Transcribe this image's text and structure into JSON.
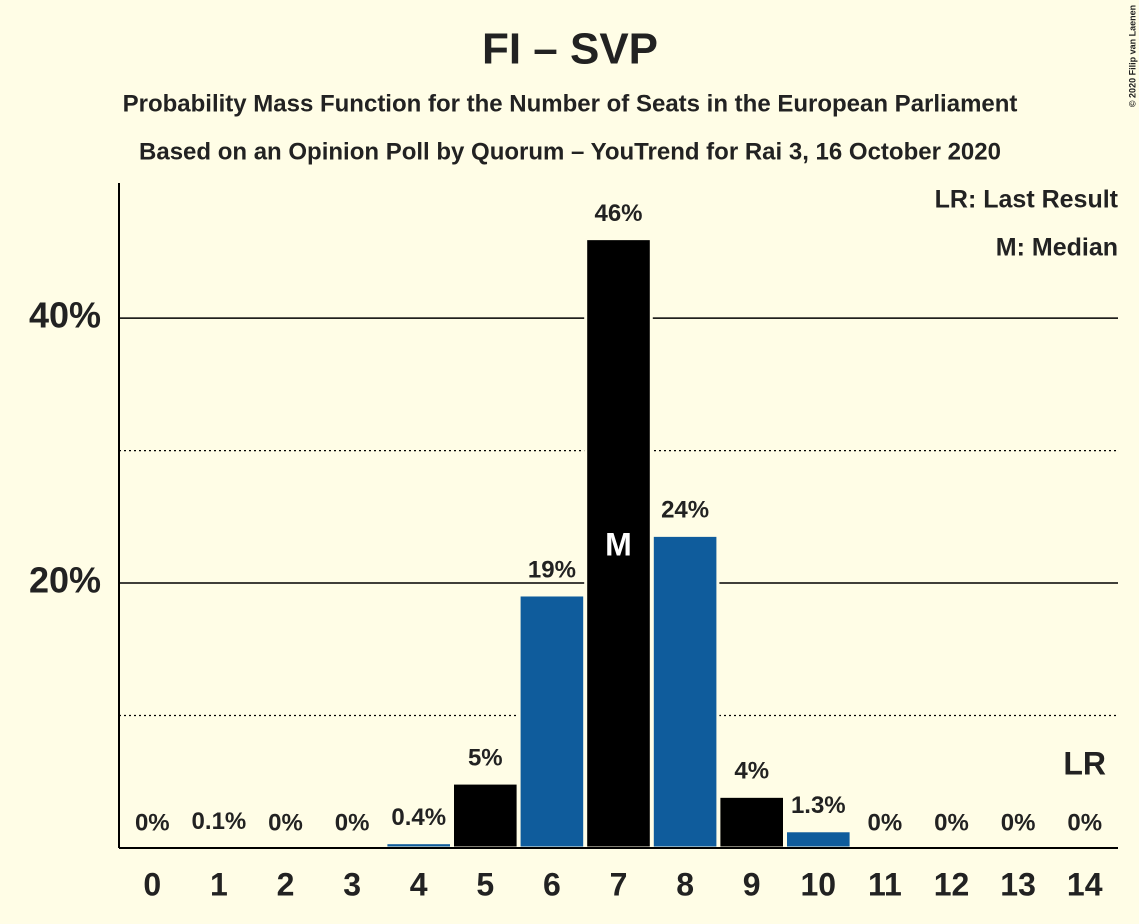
{
  "chart_data": {
    "type": "bar",
    "title": "FI – SVP",
    "subtitle": [
      "Probability Mass Function for the Number of Seats in the European Parliament",
      "Based on an Opinion Poll by Quorum – YouTrend for Rai 3, 16 October 2020"
    ],
    "categories": [
      "0",
      "1",
      "2",
      "3",
      "4",
      "5",
      "6",
      "7",
      "8",
      "9",
      "10",
      "11",
      "12",
      "13",
      "14"
    ],
    "values": [
      0,
      0.1,
      0,
      0,
      0.4,
      4.9,
      19.1,
      46,
      23.6,
      3.9,
      1.3,
      0,
      0,
      0,
      0
    ],
    "value_labels": [
      "0%",
      "0.1%",
      "0%",
      "0%",
      "0.4%",
      "5%",
      "19%",
      "46%",
      "24%",
      "4%",
      "1.3%",
      "0%",
      "0%",
      "0%",
      "0%"
    ],
    "colors": [
      "#0f5c9c",
      "#000000",
      "#0f5c9c",
      "#000000",
      "#0f5c9c",
      "#000000",
      "#0f5c9c",
      "#000000",
      "#0f5c9c",
      "#000000",
      "#0f5c9c",
      "#000000",
      "#0f5c9c",
      "#000000",
      "#0f5c9c"
    ],
    "ylim": [
      0,
      50.2
    ],
    "yticks": [
      {
        "value": 20,
        "label": "20%"
      },
      {
        "value": 40,
        "label": "40%"
      }
    ],
    "y_minor_ticks": [
      10,
      30
    ],
    "grid": true,
    "legend": [
      "LR: Last Result",
      "M: Median"
    ],
    "annotations": [
      {
        "category": 7,
        "text": "M"
      },
      {
        "category": 14,
        "text": "LR"
      }
    ],
    "copyright": "© 2020 Filip van Laenen"
  }
}
